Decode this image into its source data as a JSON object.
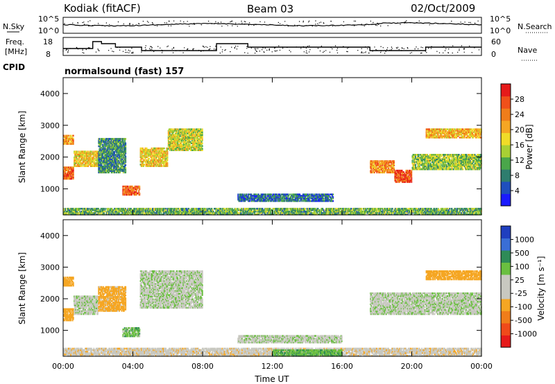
{
  "header": {
    "station": "Kodiak (fitACF)",
    "beam": "Beam 03",
    "date": "02/Oct/2009"
  },
  "noise_panel": {
    "left_label": "N.Sky",
    "right_label": "N.Search",
    "left_ticks": [
      "10^5",
      "10^0"
    ],
    "right_ticks": [
      "10^5",
      "10^0"
    ]
  },
  "freq_panel": {
    "left_label_1": "Freq.",
    "left_label_2": "[MHz]",
    "right_label": "Nave",
    "left_ticks": [
      "18",
      "8"
    ],
    "right_ticks": [
      "60",
      "0"
    ]
  },
  "cpid": {
    "label": "CPID",
    "program": "normalsound (fast) 157"
  },
  "time_axis": {
    "label": "Time UT",
    "ticks": [
      "00:00",
      "04:00",
      "08:00",
      "12:00",
      "16:00",
      "20:00",
      "00:00"
    ]
  },
  "chart_data": [
    {
      "type": "heatmap",
      "title": "",
      "xlabel": "Time UT",
      "ylabel": "Slant Range [km]",
      "xlim": [
        0,
        24
      ],
      "ylim": [
        180,
        4500
      ],
      "y_ticks": [
        "1000",
        "2000",
        "3000",
        "4000"
      ],
      "colorbar": {
        "label": "Power [dB]",
        "ticks": [
          "4",
          "8",
          "12",
          "16",
          "20",
          "24",
          "28"
        ],
        "colors": [
          "#1a1aff",
          "#1f4fbd",
          "#2e7d6e",
          "#4aa64a",
          "#a8d034",
          "#f0dc28",
          "#f5a623",
          "#f07d1a",
          "#f0501a",
          "#e61a1a"
        ]
      },
      "regions": [
        {
          "t0": 0.0,
          "t1": 0.6,
          "r0": 1300,
          "r1": 1700,
          "v": 24
        },
        {
          "t0": 0.0,
          "t1": 0.6,
          "r0": 2400,
          "r1": 2700,
          "v": 22
        },
        {
          "t0": 0.6,
          "t1": 2.0,
          "r0": 1700,
          "r1": 2200,
          "v": 18
        },
        {
          "t0": 2.0,
          "t1": 3.6,
          "r0": 1500,
          "r1": 2600,
          "v": 10
        },
        {
          "t0": 3.4,
          "t1": 4.4,
          "r0": 800,
          "r1": 1100,
          "v": 24
        },
        {
          "t0": 4.4,
          "t1": 6.0,
          "r0": 1700,
          "r1": 2300,
          "v": 18
        },
        {
          "t0": 6.0,
          "t1": 8.0,
          "r0": 2200,
          "r1": 2900,
          "v": 16
        },
        {
          "t0": 10.0,
          "t1": 15.5,
          "r0": 600,
          "r1": 850,
          "v": 8
        },
        {
          "t0": 17.6,
          "t1": 19.0,
          "r0": 1500,
          "r1": 1900,
          "v": 22
        },
        {
          "t0": 19.0,
          "t1": 20.0,
          "r0": 1200,
          "r1": 1600,
          "v": 26
        },
        {
          "t0": 20.0,
          "t1": 24.0,
          "r0": 1600,
          "r1": 2100,
          "v": 14
        },
        {
          "t0": 20.8,
          "t1": 24.0,
          "r0": 2600,
          "r1": 2900,
          "v": 20
        },
        {
          "t0": 0.0,
          "t1": 24.0,
          "r0": 180,
          "r1": 400,
          "v": 12
        }
      ]
    },
    {
      "type": "heatmap",
      "title": "",
      "xlabel": "Time UT",
      "ylabel": "Slant Range [km]",
      "xlim": [
        0,
        24
      ],
      "ylim": [
        180,
        4500
      ],
      "y_ticks": [
        "1000",
        "2000",
        "3000",
        "4000"
      ],
      "colorbar": {
        "label": "Velocity [m s⁻¹]",
        "ticks": [
          "1000",
          "500",
          "100",
          "25",
          "-25",
          "-100",
          "-500",
          "-1000"
        ],
        "colors": [
          "#1f3fbf",
          "#3a6ed6",
          "#2e8b57",
          "#6abf40",
          "#c8c8c0",
          "#c8c8c0",
          "#f5a623",
          "#f07d1a",
          "#f04a1a",
          "#e61a1a"
        ]
      },
      "regions": [
        {
          "t0": 0.0,
          "t1": 0.6,
          "r0": 1300,
          "r1": 1700,
          "v": -200
        },
        {
          "t0": 0.0,
          "t1": 0.6,
          "r0": 2400,
          "r1": 2700,
          "v": -200
        },
        {
          "t0": 0.6,
          "t1": 2.0,
          "r0": 1500,
          "r1": 2100,
          "v": 0
        },
        {
          "t0": 2.0,
          "t1": 3.6,
          "r0": 1600,
          "r1": 2400,
          "v": -150
        },
        {
          "t0": 3.4,
          "t1": 4.4,
          "r0": 800,
          "r1": 1100,
          "v": 60
        },
        {
          "t0": 4.4,
          "t1": 8.0,
          "r0": 1700,
          "r1": 2900,
          "v": 0
        },
        {
          "t0": 10.0,
          "t1": 16.0,
          "r0": 600,
          "r1": 850,
          "v": 0
        },
        {
          "t0": 0.0,
          "t1": 24.0,
          "r0": 180,
          "r1": 450,
          "v": -60
        },
        {
          "t0": 12.0,
          "t1": 16.0,
          "r0": 180,
          "r1": 400,
          "v": 80
        },
        {
          "t0": 17.6,
          "t1": 24.0,
          "r0": 1500,
          "r1": 2200,
          "v": 0
        },
        {
          "t0": 20.8,
          "t1": 24.0,
          "r0": 2600,
          "r1": 2900,
          "v": -200
        }
      ]
    }
  ]
}
